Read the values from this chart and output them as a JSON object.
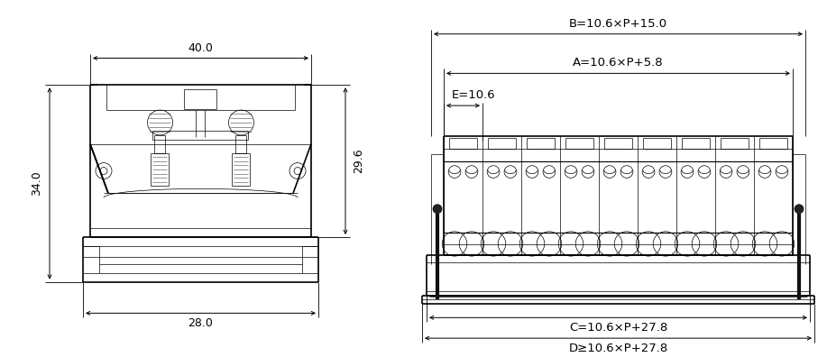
{
  "bg_color": "#ffffff",
  "lc": "#000000",
  "fs": 9,
  "lw_main": 1.2,
  "lw_mid": 0.8,
  "lw_thin": 0.5,
  "lw_dim": 0.7,
  "left_view": {
    "label_40": "40.0",
    "label_34": "34.0",
    "label_29": "29.6",
    "label_28": "28.0"
  },
  "right_view": {
    "label_B": "B=10.6×P+15.0",
    "label_A": "A=10.6×P+5.8",
    "label_E": "E=10.6",
    "label_C": "C=10.6×P+27.8",
    "label_D": "D≥10.6×P+27.8",
    "n_blocks": 9
  }
}
